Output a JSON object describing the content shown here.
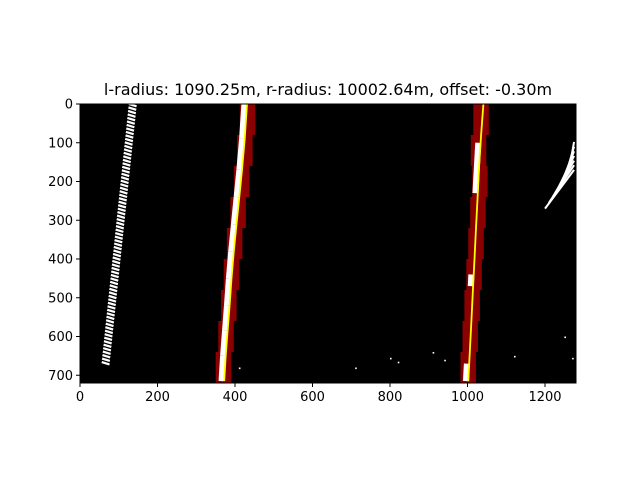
{
  "chart_data": {
    "type": "image",
    "title": "l-radius: 1090.25m, r-radius: 10002.64m, offset: -0.30m",
    "xlabel": "",
    "ylabel": "",
    "xlim": [
      0,
      1280
    ],
    "ylim": [
      720,
      0
    ],
    "x_ticks": [
      0,
      200,
      400,
      600,
      800,
      1000,
      1200
    ],
    "y_ticks": [
      0,
      100,
      200,
      300,
      400,
      500,
      600,
      700
    ],
    "background_color": "#000000",
    "pixel_color": "#ffffff",
    "window_color": "#8b0000",
    "fit_line_color": "#ffff00",
    "series": [
      {
        "x": [
          372,
          376,
          381,
          386,
          391,
          397,
          404,
          411,
          418,
          425,
          431
        ],
        "y": [
          715,
          650,
          585,
          520,
          450,
          380,
          310,
          240,
          170,
          90,
          0
        ]
      },
      {
        "x": [
          1002,
          1006,
          1010,
          1014,
          1018,
          1022,
          1026,
          1030,
          1035,
          1041
        ],
        "y": [
          715,
          640,
          560,
          480,
          400,
          320,
          240,
          160,
          80,
          0
        ]
      }
    ]
  }
}
